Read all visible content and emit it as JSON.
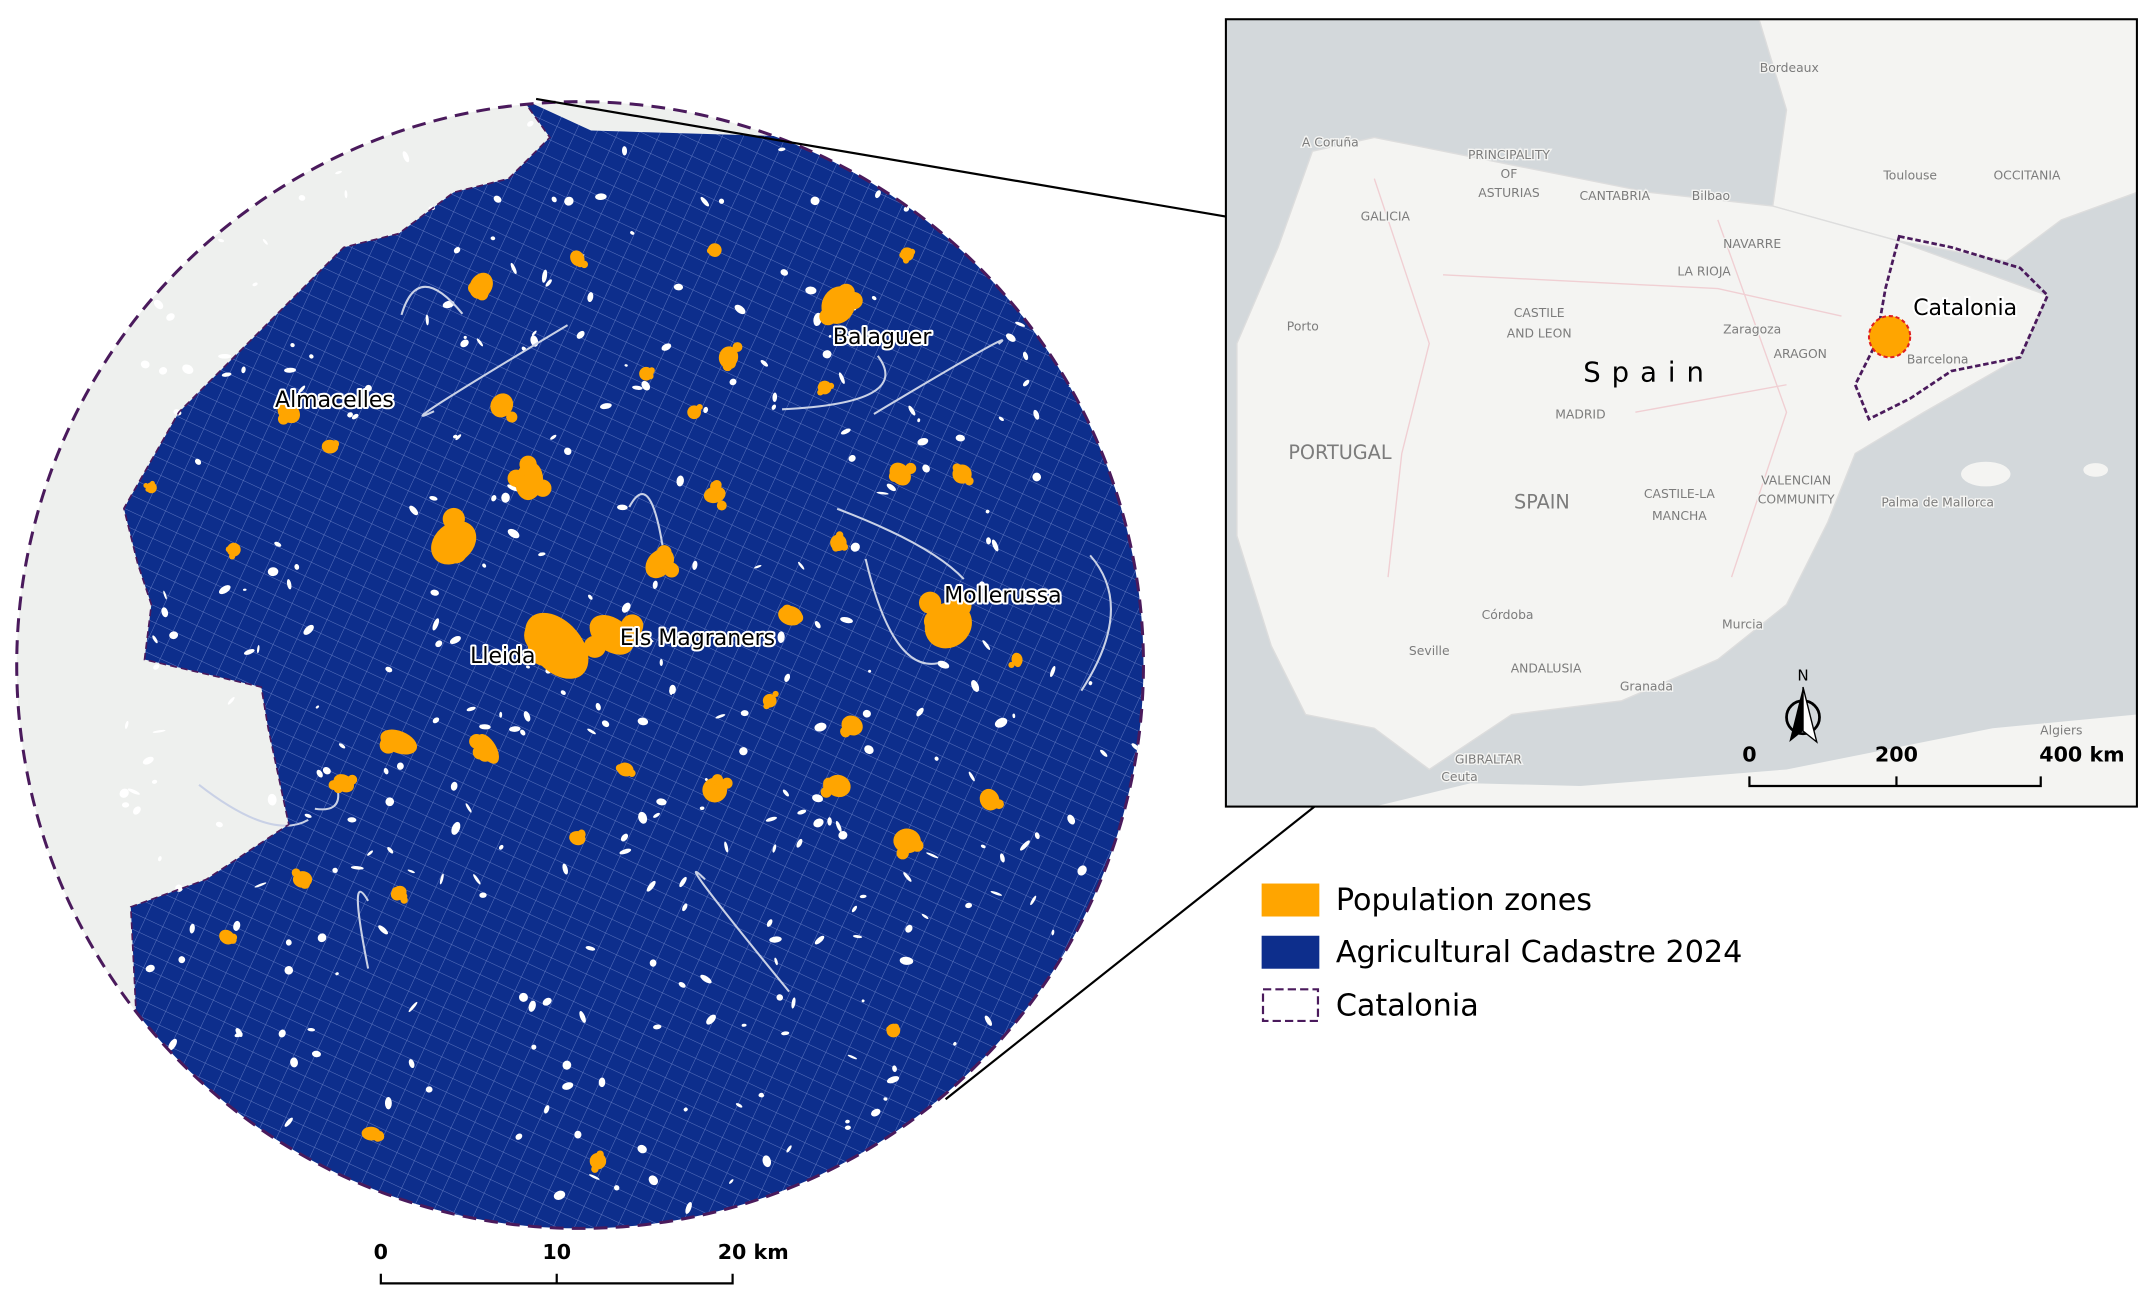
{
  "main_map": {
    "places": [
      "Almacelles",
      "Balaguer",
      "Lleida",
      "Els Magraners",
      "Mollerussa"
    ],
    "scale_bar": [
      "0",
      "10",
      "20 km"
    ]
  },
  "inset_map": {
    "highlight": "Catalonia",
    "country": "Spain",
    "labels": [
      "GALICIA",
      "CANTABRIA",
      "NAVARRE",
      "LA RIOJA",
      "ARAGON",
      "PORTUGAL",
      "SPAIN",
      "ANDALUSIA",
      "GIBRALTAR",
      "OCCITANIA",
      "MADRID",
      "Zaragoza",
      "Barcelona",
      "Bilbao",
      "Toulouse",
      "Bordeaux",
      "Porto",
      "A Coruña",
      "Seville",
      "Córdoba",
      "Granada",
      "Murcia",
      "Palma de Mallorca",
      "Algiers",
      "Ceuta",
      "CASTILE",
      "AND LEON",
      "VALENCIAN",
      "COMMUNITY",
      "CASTILE-LA",
      "MANCHA",
      "PRINCIPALITY",
      "OF",
      "ASTURIAS"
    ],
    "scale_bar": [
      "0",
      "200",
      "400 km"
    ],
    "north": "N"
  },
  "legend": [
    "Population zones",
    "Agricultural Cadastre 2024",
    "Catalonia"
  ]
}
